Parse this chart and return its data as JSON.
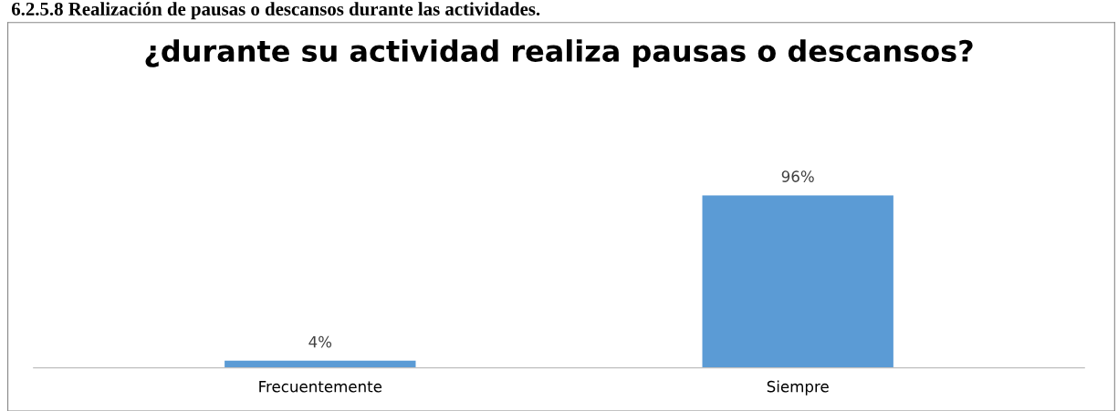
{
  "chart_data": {
    "type": "bar",
    "title": "¿durante su actividad realiza pausas o descansos?",
    "annotations": [
      "6.2.5.8 Realización de pausas o descansos durante las actividades."
    ],
    "categories": [
      "Frecuentemente",
      "Siempre"
    ],
    "values": [
      4,
      96
    ],
    "value_labels": [
      "4%",
      "96%"
    ],
    "color": "#5b9bd5",
    "grid": false,
    "legend": false
  }
}
